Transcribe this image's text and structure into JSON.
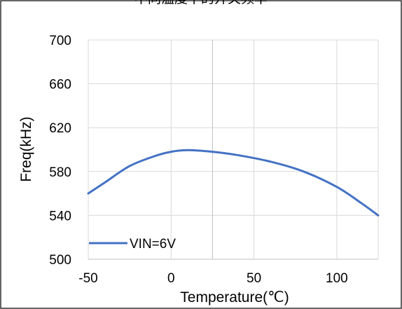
{
  "chart_data": {
    "type": "line",
    "title": "不同温度下的开关频率",
    "xlabel": "Temperature(℃)",
    "ylabel": "Freq(kHz)",
    "xlim": [
      -50,
      125
    ],
    "ylim": [
      500,
      700
    ],
    "x_ticks": [
      "-50",
      "0",
      "50",
      "100"
    ],
    "y_ticks": [
      "500",
      "540",
      "580",
      "620",
      "660",
      "700"
    ],
    "grid": true,
    "legend_position": "bottom-left",
    "series": [
      {
        "name": "VIN=6V",
        "color": "#4472c4",
        "points": [
          {
            "x": -50,
            "y": 560
          },
          {
            "x": -40,
            "y": 570
          },
          {
            "x": -25,
            "y": 585
          },
          {
            "x": -10,
            "y": 594
          },
          {
            "x": 0,
            "y": 598
          },
          {
            "x": 10,
            "y": 599.5
          },
          {
            "x": 25,
            "y": 598
          },
          {
            "x": 40,
            "y": 595
          },
          {
            "x": 60,
            "y": 589
          },
          {
            "x": 80,
            "y": 580
          },
          {
            "x": 100,
            "y": 566
          },
          {
            "x": 115,
            "y": 551
          },
          {
            "x": 125,
            "y": 540
          }
        ]
      }
    ]
  }
}
